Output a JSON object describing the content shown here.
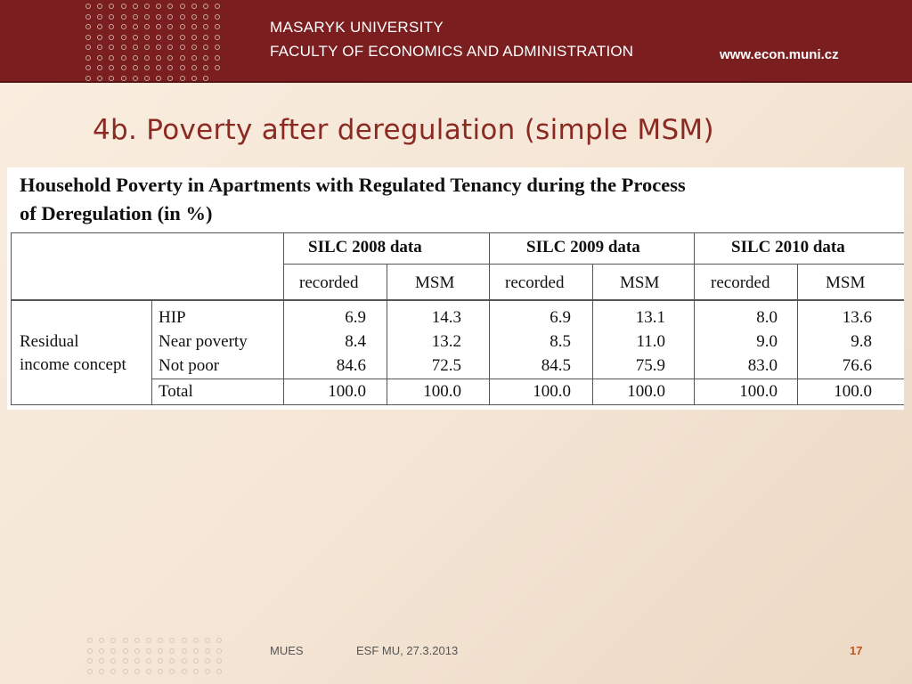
{
  "header": {
    "university": "MASARYK UNIVERSITY",
    "faculty": "FACULTY OF ECONOMICS AND ADMINISTRATION",
    "website": "www.econ.muni.cz",
    "background_color": "#7a1e1f"
  },
  "slide": {
    "title": "4b. Poverty after deregulation (simple MSM)",
    "title_color": "#8a2a22"
  },
  "table": {
    "caption_line1": "Household Poverty in Apartments with Regulated Tenancy during the Process",
    "caption_line2": "of Deregulation (in %)",
    "groups": [
      "SILC 2008 data",
      "SILC 2009 data",
      "SILC 2010 data"
    ],
    "subheaders": [
      "recorded",
      "MSM",
      "recorded",
      "MSM",
      "recorded",
      "MSM"
    ],
    "row_group_label_line1": "Residual",
    "row_group_label_line2": "income concept",
    "rows": [
      {
        "label": "HIP",
        "values": [
          "6.9",
          "14.3",
          "6.9",
          "13.1",
          "8.0",
          "13.6"
        ]
      },
      {
        "label": "Near poverty",
        "values": [
          "8.4",
          "13.2",
          "8.5",
          "11.0",
          "9.0",
          "9.8"
        ]
      },
      {
        "label": "Not poor",
        "values": [
          "84.6",
          "72.5",
          "84.5",
          "75.9",
          "83.0",
          "76.6"
        ]
      },
      {
        "label": "Total",
        "values": [
          "100.0",
          "100.0",
          "100.0",
          "100.0",
          "100.0",
          "100.0"
        ]
      }
    ]
  },
  "footer": {
    "left": "MUES",
    "center": "ESF MU, 27.3.2013",
    "page": "17",
    "page_color": "#c0561a"
  }
}
